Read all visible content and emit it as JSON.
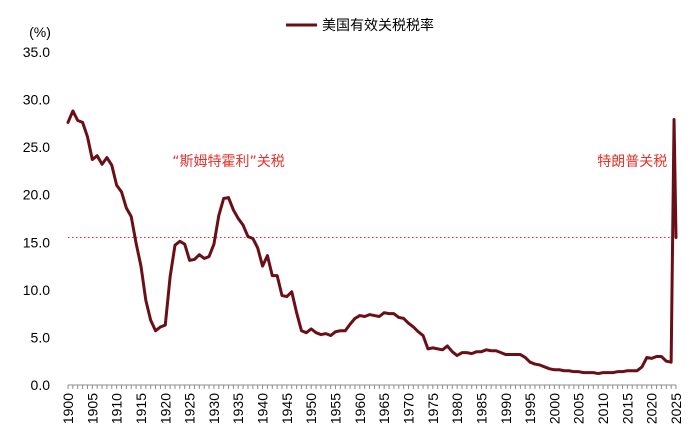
{
  "chart_data": {
    "type": "line",
    "title": "",
    "unit_label": "(%)",
    "xlabel": "",
    "ylabel": "",
    "legend": {
      "position": "top-center",
      "entries": [
        {
          "name": "美国有效关税税率",
          "color": "#6b0f16"
        }
      ]
    },
    "xlim": [
      1900,
      2025
    ],
    "ylim": [
      0,
      35
    ],
    "y_ticks": [
      "0.0",
      "5.0",
      "10.0",
      "15.0",
      "20.0",
      "25.0",
      "30.0",
      "35.0"
    ],
    "x_ticks": [
      "1900",
      "1905",
      "1910",
      "1915",
      "1920",
      "1925",
      "1930",
      "1935",
      "1940",
      "1945",
      "1950",
      "1955",
      "1960",
      "1965",
      "1970",
      "1975",
      "1980",
      "1985",
      "1990",
      "1995",
      "2000",
      "2005",
      "2010",
      "2015",
      "2020",
      "2025"
    ],
    "grid": false,
    "reference_line": {
      "y": 15.5,
      "style": "dotted",
      "color": "#e8312a"
    },
    "annotations": [
      {
        "text": "“斯姆特霍利”关税",
        "x": 1933,
        "y": 23.0
      },
      {
        "text": "特朗普关税",
        "x": 2016,
        "y": 23.0
      }
    ],
    "series": [
      {
        "name": "美国有效关税税率",
        "color": "#6b0f16",
        "x": [
          1900,
          1901,
          1902,
          1903,
          1904,
          1905,
          1906,
          1907,
          1908,
          1909,
          1910,
          1911,
          1912,
          1913,
          1914,
          1915,
          1916,
          1917,
          1918,
          1919,
          1920,
          1921,
          1922,
          1923,
          1924,
          1925,
          1926,
          1927,
          1928,
          1929,
          1930,
          1931,
          1932,
          1933,
          1934,
          1935,
          1936,
          1937,
          1938,
          1939,
          1940,
          1941,
          1942,
          1943,
          1944,
          1945,
          1946,
          1947,
          1948,
          1949,
          1950,
          1951,
          1952,
          1953,
          1954,
          1955,
          1956,
          1957,
          1958,
          1959,
          1960,
          1961,
          1962,
          1963,
          1964,
          1965,
          1966,
          1967,
          1968,
          1969,
          1970,
          1971,
          1972,
          1973,
          1974,
          1975,
          1976,
          1977,
          1978,
          1979,
          1980,
          1981,
          1982,
          1983,
          1984,
          1985,
          1986,
          1987,
          1988,
          1989,
          1990,
          1991,
          1992,
          1993,
          1994,
          1995,
          1996,
          1997,
          1998,
          1999,
          2000,
          2001,
          2002,
          2003,
          2004,
          2005,
          2006,
          2007,
          2008,
          2009,
          2010,
          2011,
          2012,
          2013,
          2014,
          2015,
          2016,
          2017,
          2018,
          2019,
          2020,
          2021,
          2022,
          2023,
          2024,
          2024.6,
          2025
        ],
        "values": [
          27.6,
          28.8,
          27.8,
          27.6,
          26.1,
          23.7,
          24.1,
          23.2,
          23.9,
          23.1,
          21.0,
          20.3,
          18.6,
          17.7,
          14.9,
          12.5,
          8.9,
          6.8,
          5.7,
          6.1,
          6.3,
          11.4,
          14.7,
          15.1,
          14.8,
          13.1,
          13.2,
          13.7,
          13.3,
          13.5,
          14.8,
          17.8,
          19.6,
          19.7,
          18.4,
          17.5,
          16.8,
          15.6,
          15.4,
          14.4,
          12.5,
          13.6,
          11.5,
          11.5,
          9.4,
          9.3,
          9.8,
          7.6,
          5.7,
          5.5,
          5.9,
          5.5,
          5.3,
          5.4,
          5.2,
          5.6,
          5.7,
          5.7,
          6.4,
          7.0,
          7.3,
          7.2,
          7.4,
          7.3,
          7.2,
          7.6,
          7.5,
          7.5,
          7.1,
          7.0,
          6.5,
          6.1,
          5.6,
          5.2,
          3.8,
          3.9,
          3.8,
          3.7,
          4.1,
          3.5,
          3.1,
          3.4,
          3.4,
          3.3,
          3.5,
          3.5,
          3.7,
          3.6,
          3.6,
          3.4,
          3.2,
          3.2,
          3.2,
          3.2,
          2.9,
          2.4,
          2.2,
          2.1,
          1.9,
          1.7,
          1.6,
          1.6,
          1.5,
          1.5,
          1.4,
          1.4,
          1.3,
          1.3,
          1.3,
          1.2,
          1.3,
          1.3,
          1.3,
          1.4,
          1.4,
          1.5,
          1.5,
          1.5,
          1.9,
          2.9,
          2.8,
          3.0,
          3.0,
          2.5,
          2.4,
          27.9,
          15.5
        ]
      }
    ]
  }
}
